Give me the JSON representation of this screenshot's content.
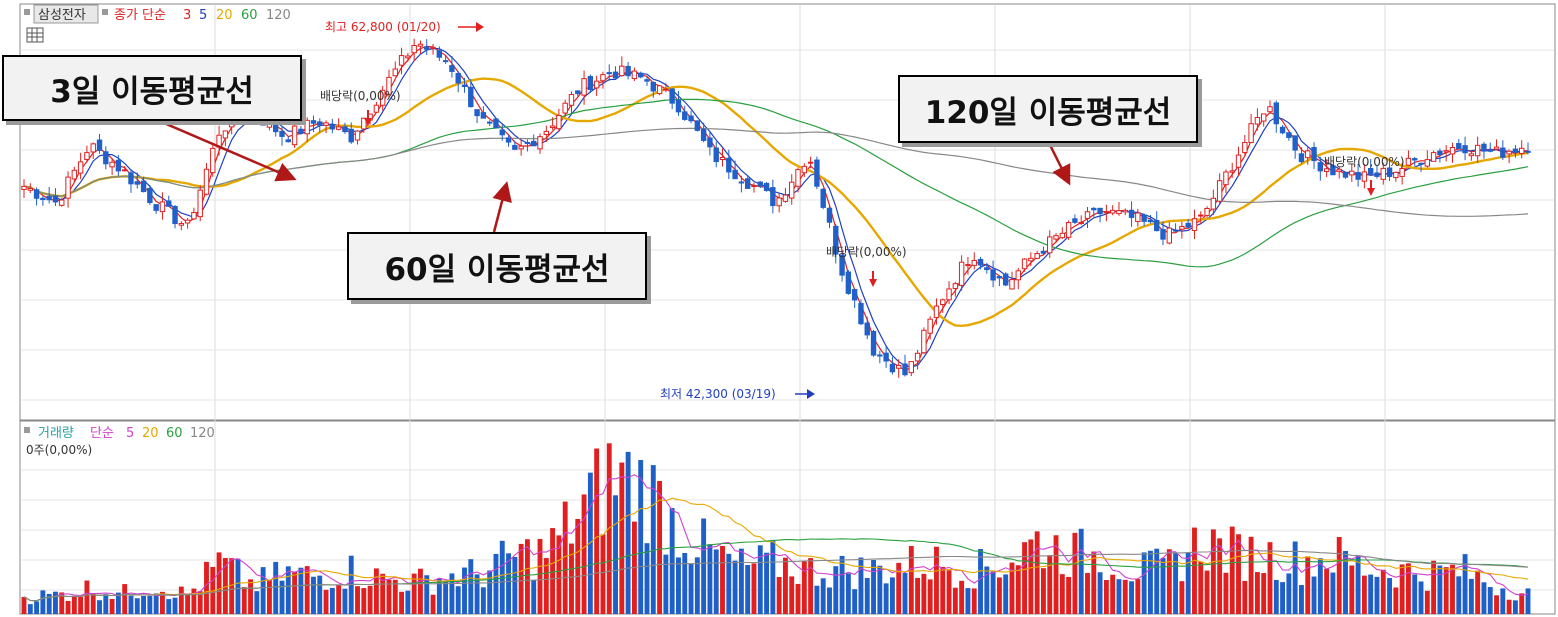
{
  "header": {
    "stock_name": "삼성전자",
    "price_indicator": "종가 단순",
    "ma_periods": [
      "3",
      "5",
      "20",
      "60",
      "120"
    ],
    "ma_colors": [
      "#e02020",
      "#2040c0",
      "#e6a800",
      "#2aa040",
      "#888888"
    ]
  },
  "volume_header": {
    "title": "거래량",
    "type": "단순",
    "ma_periods": [
      "5",
      "20",
      "60",
      "120"
    ],
    "ma_colors": [
      "#d040d0",
      "#e6a800",
      "#2aa040",
      "#888888"
    ],
    "value_label": "0주(0,00%)"
  },
  "annotations": {
    "high": "최고 62,800 (01/20)",
    "low": "최저 42,300 (03/19)",
    "dividend": "배당락(0,00%)"
  },
  "callouts": {
    "ma3": "3일 이동평균선",
    "ma60": "60일 이동평균선",
    "ma120": "120일 이동평균선"
  },
  "chart_data": {
    "type": "candlestick",
    "price_high": 62800,
    "price_low": 42300,
    "close_path": [
      54000,
      53000,
      56500,
      55000,
      53000,
      51500,
      57500,
      58500,
      57000,
      58000,
      57000,
      60000,
      62800,
      61500,
      58000,
      56000,
      57500,
      60000,
      61000,
      60500,
      59000,
      56000,
      54500,
      53000,
      56000,
      49000,
      44000,
      42500,
      47000,
      50000,
      48000,
      50000,
      51500,
      52500,
      52000,
      51000,
      52000,
      55500,
      59000,
      56000,
      55000,
      54500,
      55000,
      56000,
      56500,
      56000,
      56500
    ],
    "volume_path": [
      12,
      13,
      18,
      14,
      20,
      13,
      35,
      20,
      28,
      26,
      30,
      24,
      22,
      26,
      28,
      40,
      42,
      70,
      95,
      88,
      60,
      42,
      32,
      36,
      30,
      30,
      30,
      34,
      35,
      30,
      35,
      50,
      42,
      40,
      30,
      32,
      50,
      42,
      40,
      36,
      40,
      32,
      30,
      28,
      30,
      20,
      14
    ],
    "ma_periods": [
      3,
      5,
      20,
      60,
      120
    ]
  }
}
